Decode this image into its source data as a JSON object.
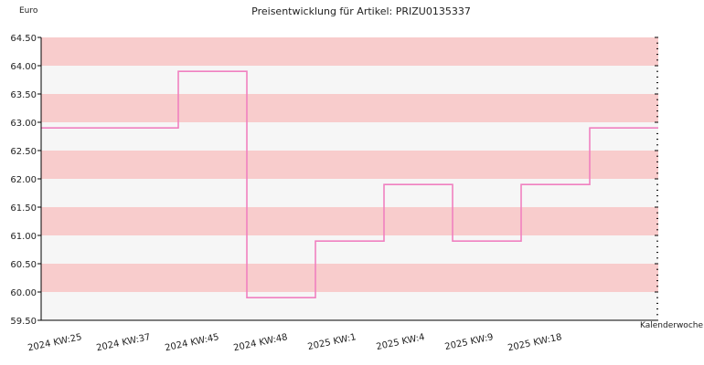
{
  "chart_data": {
    "type": "line",
    "step": true,
    "title": "Preisentwicklung für Artikel: PRIZU0135337",
    "ylabel": "Euro",
    "xlabel": "Kalenderwoche",
    "ylim": [
      59.5,
      64.5
    ],
    "yticks": [
      "59.50",
      "60.00",
      "60.50",
      "61.00",
      "61.50",
      "62.00",
      "62.50",
      "63.00",
      "63.50",
      "64.00",
      "64.50"
    ],
    "categories": [
      "2024 KW:25",
      "2024 KW:37",
      "2024 KW:45",
      "2024 KW:48",
      "2025 KW:1",
      "2025 KW:4",
      "2025 KW:9",
      "2025 KW:18"
    ],
    "series": [
      {
        "values": [
          62.9,
          63.9,
          59.9,
          60.9,
          61.9,
          60.9,
          61.9,
          62.9
        ]
      }
    ],
    "grid": true,
    "colors": {
      "line": "#f080c0",
      "band": "#f8cccc",
      "band_alt": "#f6f6f6",
      "axis": "#000000"
    }
  }
}
